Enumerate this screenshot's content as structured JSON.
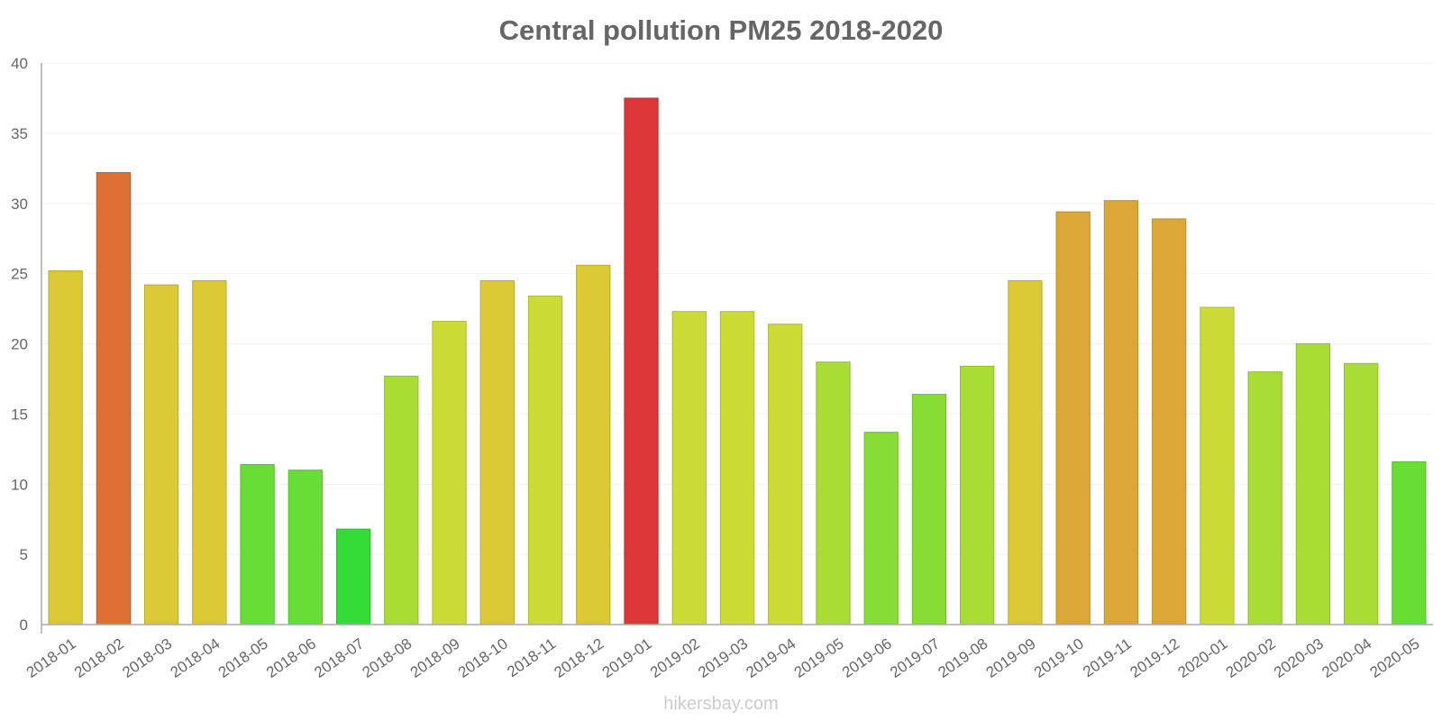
{
  "chart_data": {
    "type": "bar",
    "title": "Central pollution PM25 2018-2020",
    "xlabel": "",
    "ylabel": "",
    "ylim": [
      0,
      40
    ],
    "yticks": [
      0,
      5,
      10,
      15,
      20,
      25,
      30,
      35,
      40
    ],
    "grid": true,
    "categories": [
      "2018-01",
      "2018-02",
      "2018-03",
      "2018-04",
      "2018-05",
      "2018-06",
      "2018-07",
      "2018-08",
      "2018-09",
      "2018-10",
      "2018-11",
      "2018-12",
      "2019-01",
      "2019-02",
      "2019-03",
      "2019-04",
      "2019-05",
      "2019-06",
      "2019-07",
      "2019-08",
      "2019-09",
      "2019-10",
      "2019-11",
      "2019-12",
      "2020-01",
      "2020-02",
      "2020-03",
      "2020-04",
      "2020-05"
    ],
    "values": [
      25.2,
      32.2,
      24.2,
      24.5,
      11.4,
      11.0,
      6.8,
      17.7,
      21.6,
      24.5,
      23.4,
      25.6,
      37.5,
      22.3,
      22.3,
      21.4,
      18.7,
      13.7,
      16.4,
      18.4,
      24.5,
      29.4,
      30.2,
      28.9,
      22.6,
      18.0,
      20.0,
      18.6,
      11.6
    ],
    "bar_colors": [
      "#dbc936",
      "#de6f35",
      "#dbc936",
      "#dbc936",
      "#68dd36",
      "#68dd36",
      "#35db36",
      "#a8dd36",
      "#ccdc36",
      "#dbc936",
      "#ccdc36",
      "#dbc936",
      "#dc3636",
      "#ccdc36",
      "#ccdc36",
      "#ccdc36",
      "#a8dd36",
      "#88dc36",
      "#88dc36",
      "#a8dd36",
      "#dbc936",
      "#dca736",
      "#dca736",
      "#dca736",
      "#ccdc36",
      "#a8dd36",
      "#a8dd36",
      "#a8dd36",
      "#68dd36"
    ]
  },
  "footer": {
    "watermark": "hikersbay.com"
  },
  "colors": {
    "axis": "#aaaaaa",
    "grid": "#f2f2f2",
    "text": "#666666"
  }
}
